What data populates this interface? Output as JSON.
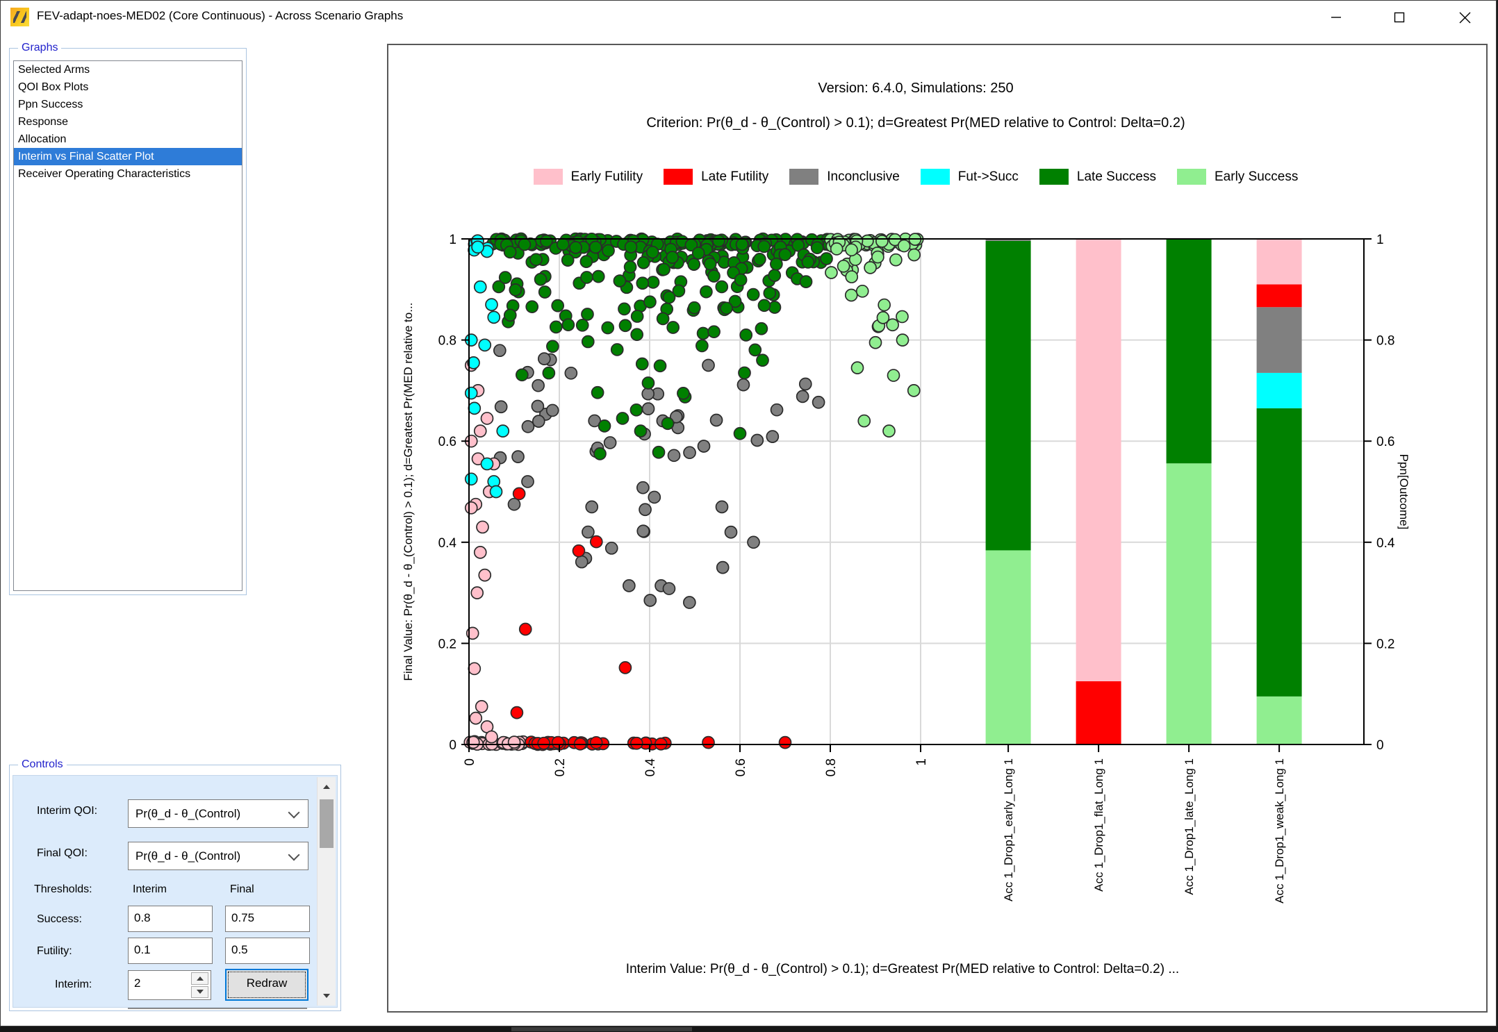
{
  "window": {
    "title": "FEV-adapt-noes-MED02 (Core Continuous) - Across Scenario Graphs"
  },
  "sidebar": {
    "label": "Graphs",
    "items": [
      "Selected Arms",
      "QOI Box Plots",
      "Ppn Success",
      "Response",
      "Allocation",
      "Interim vs Final Scatter Plot",
      "Receiver Operating Characteristics"
    ],
    "selected_index": 5
  },
  "controls": {
    "label": "Controls",
    "interim_qoi_label": "Interim QOI:",
    "interim_qoi_value": "Pr(θ_d - θ_(Control)",
    "final_qoi_label": "Final QOI:",
    "final_qoi_value": "Pr(θ_d - θ_(Control)",
    "thresholds_label": "Thresholds:",
    "col_interim": "Interim",
    "col_final": "Final",
    "success_label": "Success:",
    "success_interim": "0.8",
    "success_final": "0.75",
    "futility_label": "Futility:",
    "futility_interim": "0.1",
    "futility_final": "0.5",
    "interim_label": "Interim:",
    "interim_value": "2",
    "redraw_label": "Redraw"
  },
  "chart_data": {
    "type": [
      "scatter",
      "bar"
    ],
    "title": "Version: 6.4.0, Simulations: 250",
    "subtitle": "Criterion: Pr(θ_d - θ_(Control) > 0.1); d=Greatest Pr(MED relative to Control: Delta=0.2)",
    "colors": {
      "early_futility": "#FFC0CB",
      "late_futility": "#FF0000",
      "inconclusive": "#808080",
      "fut_succ": "#00FFFF",
      "late_success": "#008000",
      "early_success": "#90EE90"
    },
    "legend": [
      {
        "label": "Early Futility",
        "class": "early_futility"
      },
      {
        "label": "Late Futility",
        "class": "late_futility"
      },
      {
        "label": "Inconclusive",
        "class": "inconclusive"
      },
      {
        "label": "Fut->Succ",
        "class": "fut_succ"
      },
      {
        "label": "Late Success",
        "class": "late_success"
      },
      {
        "label": "Early Success",
        "class": "early_success"
      }
    ],
    "axis": {
      "ticks": [
        0,
        0.2,
        0.4,
        0.6,
        0.8,
        1
      ],
      "tick_labels": [
        "0",
        "0.2",
        "0.4",
        "0.6",
        "0.8",
        "1"
      ],
      "x_range": [
        0,
        1
      ],
      "y_range": [
        0,
        1
      ],
      "grid": true,
      "ylabel_left": "Final Value: Pr(θ_d - θ_(Control) > 0.1); d=Greatest Pr(MED relative to...",
      "ylabel_right": "Ppn[Outcome]",
      "xlabel": "Interim Value: Pr(θ_d - θ_(Control) > 0.1); d=Greatest Pr(MED relative to Control: Delta=0.2) ..."
    },
    "bars": {
      "labels": [
        "Acc 1_Drop1_early_Long 1",
        "Acc 1_Drop1_flat_Long 1",
        "Acc 1_Drop1_late_Long 1",
        "Acc 1_Drop1_weak_Long 1"
      ],
      "positions": [
        1.194,
        1.394,
        1.594,
        1.794
      ],
      "width": 0.1,
      "stacks": [
        [
          [
            "early_success",
            0.384
          ],
          [
            "late_success",
            0.612
          ],
          [
            "inconclusive",
            0.004
          ]
        ],
        [
          [
            "late_futility",
            0.125
          ],
          [
            "early_futility",
            0.875
          ]
        ],
        [
          [
            "early_success",
            0.556
          ],
          [
            "late_success",
            0.444
          ]
        ],
        [
          [
            "early_success",
            0.095
          ],
          [
            "late_success",
            0.57
          ],
          [
            "fut_succ",
            0.07
          ],
          [
            "inconclusive",
            0.13
          ],
          [
            "late_futility",
            0.045
          ],
          [
            "early_futility",
            0.09
          ]
        ]
      ]
    },
    "scatter": {
      "point_radius": 8.5,
      "clusters": [
        {
          "class": "late_success",
          "n": 120,
          "x": [
            0.05,
            0.83
          ],
          "y": [
            0.988,
            1.0
          ],
          "seed": 1
        },
        {
          "class": "late_success",
          "n": 70,
          "x": [
            0.07,
            0.8
          ],
          "y": [
            0.952,
            0.99
          ],
          "seed": 2
        },
        {
          "class": "late_success",
          "n": 55,
          "x": [
            0.06,
            0.76
          ],
          "y": [
            0.86,
            0.955
          ],
          "seed": 3
        },
        {
          "class": "late_success",
          "n": 28,
          "x": [
            0.05,
            0.66
          ],
          "y": [
            0.78,
            0.87
          ],
          "seed": 4
        },
        {
          "class": "late_success",
          "n": 9,
          "x": [
            0.08,
            0.52
          ],
          "y": [
            0.66,
            0.78
          ],
          "seed": 5
        },
        {
          "class": "early_success",
          "n": 45,
          "x": [
            0.8,
            0.995
          ],
          "y": [
            0.985,
            1.0
          ],
          "seed": 6
        },
        {
          "class": "early_success",
          "n": 16,
          "x": [
            0.8,
            0.99
          ],
          "y": [
            0.93,
            0.985
          ],
          "seed": 7
        },
        {
          "class": "early_success",
          "n": 9,
          "x": [
            0.82,
            0.99
          ],
          "y": [
            0.82,
            0.93
          ],
          "seed": 8
        },
        {
          "class": "fut_succ",
          "n": 8,
          "x": [
            0.005,
            0.055
          ],
          "y": [
            0.94,
            1.0
          ],
          "seed": 9
        },
        {
          "class": "inconclusive",
          "n": 16,
          "x": [
            0.06,
            0.3
          ],
          "y": [
            0.55,
            0.78
          ],
          "seed": 10
        },
        {
          "class": "inconclusive",
          "n": 13,
          "x": [
            0.25,
            0.6
          ],
          "y": [
            0.55,
            0.72
          ],
          "seed": 11
        },
        {
          "class": "inconclusive",
          "n": 7,
          "x": [
            0.6,
            0.85
          ],
          "y": [
            0.6,
            0.72
          ],
          "seed": 12
        },
        {
          "class": "inconclusive",
          "n": 10,
          "x": [
            0.24,
            0.5
          ],
          "y": [
            0.36,
            0.53
          ],
          "seed": 13
        },
        {
          "class": "inconclusive",
          "n": 6,
          "x": [
            0.3,
            0.58
          ],
          "y": [
            0.28,
            0.36
          ],
          "seed": 14
        },
        {
          "class": "early_futility",
          "n": 26,
          "x": [
            0.0,
            0.125
          ],
          "y": [
            0.0,
            0.006
          ],
          "seed": 15
        },
        {
          "class": "late_futility",
          "n": 14,
          "x": [
            0.12,
            0.215
          ],
          "y": [
            0.0,
            0.005
          ],
          "seed": 16
        },
        {
          "class": "late_futility",
          "n": 8,
          "x": [
            0.225,
            0.315
          ],
          "y": [
            0.0,
            0.005
          ],
          "seed": 17
        },
        {
          "class": "late_futility",
          "n": 7,
          "x": [
            0.35,
            0.455
          ],
          "y": [
            0.0,
            0.005
          ],
          "seed": 18
        }
      ],
      "points": [
        {
          "class": "late_success",
          "xy": [
            [
              0.3,
              0.63
            ],
            [
              0.34,
              0.645
            ],
            [
              0.38,
              0.62
            ],
            [
              0.44,
              0.635
            ],
            [
              0.29,
              0.575
            ],
            [
              0.42,
              0.578
            ],
            [
              0.6,
              0.615
            ],
            [
              0.65,
              0.76
            ],
            [
              0.61,
              0.735
            ]
          ]
        },
        {
          "class": "early_success",
          "xy": [
            [
              0.9,
              0.795
            ],
            [
              0.96,
              0.8
            ],
            [
              0.86,
              0.745
            ],
            [
              0.94,
              0.73
            ],
            [
              0.985,
              0.7
            ],
            [
              0.875,
              0.64
            ],
            [
              0.93,
              0.62
            ]
          ]
        },
        {
          "class": "fut_succ",
          "xy": [
            [
              0.025,
              0.905
            ],
            [
              0.05,
              0.87
            ],
            [
              0.055,
              0.845
            ],
            [
              0.005,
              0.8
            ],
            [
              0.035,
              0.79
            ],
            [
              0.01,
              0.755
            ],
            [
              0.005,
              0.695
            ],
            [
              0.012,
              0.665
            ],
            [
              0.075,
              0.62
            ],
            [
              0.04,
              0.555
            ],
            [
              0.005,
              0.525
            ],
            [
              0.055,
              0.52
            ],
            [
              0.06,
              0.5
            ]
          ]
        },
        {
          "class": "early_futility",
          "xy": [
            [
              0.005,
              0.75
            ],
            [
              0.02,
              0.7
            ],
            [
              0.04,
              0.645
            ],
            [
              0.025,
              0.62
            ],
            [
              0.005,
              0.6
            ],
            [
              0.02,
              0.565
            ],
            [
              0.055,
              0.555
            ],
            [
              0.045,
              0.5
            ],
            [
              0.015,
              0.475
            ],
            [
              0.005,
              0.468
            ],
            [
              0.03,
              0.43
            ],
            [
              0.025,
              0.38
            ],
            [
              0.035,
              0.335
            ],
            [
              0.018,
              0.3
            ],
            [
              0.008,
              0.22
            ],
            [
              0.012,
              0.15
            ],
            [
              0.028,
              0.075
            ],
            [
              0.015,
              0.052
            ],
            [
              0.04,
              0.035
            ],
            [
              0.05,
              0.015
            ]
          ]
        },
        {
          "class": "late_futility",
          "xy": [
            [
              0.111,
              0.496
            ],
            [
              0.243,
              0.383
            ],
            [
              0.282,
              0.401
            ],
            [
              0.125,
              0.228
            ],
            [
              0.346,
              0.152
            ],
            [
              0.106,
              0.063
            ],
            [
              0.53,
              0.004
            ],
            [
              0.7,
              0.004
            ]
          ]
        },
        {
          "class": "inconclusive",
          "xy": [
            [
              0.53,
              0.75
            ],
            [
              0.52,
              0.59
            ],
            [
              0.56,
              0.47
            ],
            [
              0.58,
              0.42
            ],
            [
              0.63,
              0.4
            ],
            [
              0.13,
              0.52
            ],
            [
              0.1,
              0.475
            ]
          ]
        }
      ],
      "draw_order": [
        "inconclusive",
        "early_futility",
        "late_futility",
        "late_success",
        "early_success",
        "fut_succ"
      ]
    }
  }
}
